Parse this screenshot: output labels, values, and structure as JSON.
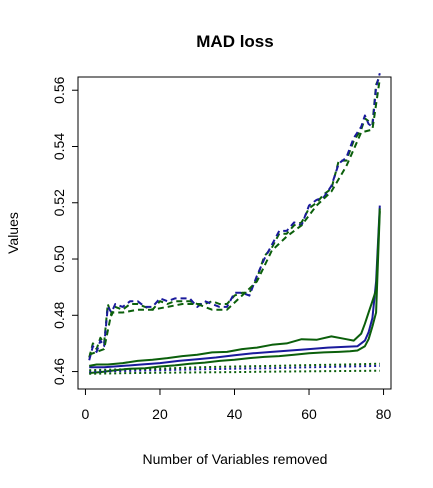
{
  "chart_data": {
    "type": "line",
    "title": "MAD loss",
    "xlabel": "Number of Variables removed",
    "ylabel": "Values",
    "xlim": [
      -2,
      82
    ],
    "ylim": [
      0.4538,
      0.5647
    ],
    "xticks": [
      0,
      20,
      40,
      60,
      80
    ],
    "yticks": [
      0.46,
      0.48,
      0.5,
      0.52,
      0.54,
      0.56
    ],
    "xtick_labels": [
      "0",
      "20",
      "40",
      "60",
      "80"
    ],
    "ytick_labels": [
      "0.46",
      "0.48",
      "0.50",
      "0.52",
      "0.54",
      "0.56"
    ],
    "grid": false,
    "legend": "none",
    "series": [
      {
        "style": "dashed",
        "color": "#0b5f0b",
        "points": [
          [
            1,
            0.465
          ],
          [
            2,
            0.47
          ],
          [
            3,
            0.468
          ],
          [
            4,
            0.472
          ],
          [
            5,
            0.47
          ],
          [
            6,
            0.484
          ],
          [
            7,
            0.48
          ],
          [
            8,
            0.483
          ],
          [
            10,
            0.482
          ],
          [
            12,
            0.484
          ],
          [
            14,
            0.484
          ],
          [
            16,
            0.483
          ],
          [
            18,
            0.482
          ],
          [
            20,
            0.485
          ],
          [
            22,
            0.484
          ],
          [
            24,
            0.485
          ],
          [
            26,
            0.485
          ],
          [
            28,
            0.485
          ],
          [
            30,
            0.484
          ],
          [
            32,
            0.484
          ],
          [
            34,
            0.485
          ],
          [
            36,
            0.484
          ],
          [
            38,
            0.484
          ],
          [
            40,
            0.487
          ],
          [
            42,
            0.488
          ],
          [
            44,
            0.488
          ],
          [
            46,
            0.493
          ],
          [
            48,
            0.501
          ],
          [
            50,
            0.504
          ],
          [
            52,
            0.509
          ],
          [
            54,
            0.509
          ],
          [
            56,
            0.512
          ],
          [
            58,
            0.513
          ],
          [
            60,
            0.518
          ],
          [
            62,
            0.52
          ],
          [
            64,
            0.523
          ],
          [
            66,
            0.525
          ],
          [
            68,
            0.535
          ],
          [
            70,
            0.535
          ],
          [
            72,
            0.542
          ],
          [
            74,
            0.546
          ],
          [
            75,
            0.55
          ],
          [
            76,
            0.549
          ],
          [
            77,
            0.548
          ],
          [
            78,
            0.562
          ],
          [
            79,
            0.565
          ]
        ]
      },
      {
        "style": "dashed",
        "color": "#1a1a9c",
        "points": [
          [
            1,
            0.464
          ],
          [
            2,
            0.469
          ],
          [
            3,
            0.467
          ],
          [
            4,
            0.471
          ],
          [
            5,
            0.469
          ],
          [
            6,
            0.483
          ],
          [
            7,
            0.481
          ],
          [
            8,
            0.484
          ],
          [
            10,
            0.483
          ],
          [
            12,
            0.485
          ],
          [
            14,
            0.485
          ],
          [
            16,
            0.483
          ],
          [
            18,
            0.483
          ],
          [
            20,
            0.486
          ],
          [
            22,
            0.485
          ],
          [
            24,
            0.486
          ],
          [
            26,
            0.486
          ],
          [
            28,
            0.486
          ],
          [
            30,
            0.483
          ],
          [
            32,
            0.485
          ],
          [
            34,
            0.484
          ],
          [
            36,
            0.483
          ],
          [
            38,
            0.483
          ],
          [
            40,
            0.488
          ],
          [
            42,
            0.488
          ],
          [
            44,
            0.487
          ],
          [
            46,
            0.494
          ],
          [
            48,
            0.5
          ],
          [
            50,
            0.505
          ],
          [
            52,
            0.51
          ],
          [
            54,
            0.51
          ],
          [
            56,
            0.513
          ],
          [
            58,
            0.512
          ],
          [
            60,
            0.519
          ],
          [
            62,
            0.521
          ],
          [
            64,
            0.522
          ],
          [
            66,
            0.526
          ],
          [
            68,
            0.534
          ],
          [
            70,
            0.536
          ],
          [
            72,
            0.543
          ],
          [
            74,
            0.547
          ],
          [
            75,
            0.551
          ],
          [
            76,
            0.548
          ],
          [
            77,
            0.547
          ],
          [
            78,
            0.561
          ],
          [
            79,
            0.566
          ]
        ]
      },
      {
        "style": "dashed",
        "color": "#0b5f0b",
        "points": [
          [
            1,
            0.466
          ],
          [
            3,
            0.467
          ],
          [
            5,
            0.468
          ],
          [
            7,
            0.481
          ],
          [
            10,
            0.481
          ],
          [
            14,
            0.482
          ],
          [
            18,
            0.482
          ],
          [
            22,
            0.483
          ],
          [
            26,
            0.484
          ],
          [
            30,
            0.484
          ],
          [
            34,
            0.482
          ],
          [
            38,
            0.482
          ],
          [
            42,
            0.487
          ],
          [
            46,
            0.492
          ],
          [
            50,
            0.503
          ],
          [
            54,
            0.508
          ],
          [
            58,
            0.512
          ],
          [
            62,
            0.519
          ],
          [
            66,
            0.524
          ],
          [
            70,
            0.533
          ],
          [
            74,
            0.545
          ],
          [
            77,
            0.546
          ],
          [
            79,
            0.564
          ]
        ]
      },
      {
        "style": "solid",
        "color": "#1a1a9c",
        "points": [
          [
            1,
            0.4615
          ],
          [
            5,
            0.4615
          ],
          [
            10,
            0.462
          ],
          [
            15,
            0.4625
          ],
          [
            20,
            0.463
          ],
          [
            25,
            0.4638
          ],
          [
            30,
            0.4644
          ],
          [
            35,
            0.465
          ],
          [
            40,
            0.4658
          ],
          [
            45,
            0.4665
          ],
          [
            50,
            0.467
          ],
          [
            55,
            0.4675
          ],
          [
            60,
            0.468
          ],
          [
            65,
            0.4685
          ],
          [
            70,
            0.4688
          ],
          [
            73,
            0.469
          ],
          [
            75,
            0.471
          ],
          [
            76,
            0.474
          ],
          [
            77,
            0.479
          ],
          [
            78,
            0.492
          ],
          [
            79,
            0.519
          ]
        ]
      },
      {
        "style": "solid",
        "color": "#0b5f0b",
        "points": [
          [
            1,
            0.462
          ],
          [
            3,
            0.4625
          ],
          [
            6,
            0.4625
          ],
          [
            10,
            0.463
          ],
          [
            14,
            0.4638
          ],
          [
            18,
            0.4642
          ],
          [
            22,
            0.4648
          ],
          [
            26,
            0.4655
          ],
          [
            30,
            0.466
          ],
          [
            34,
            0.4668
          ],
          [
            38,
            0.467
          ],
          [
            42,
            0.468
          ],
          [
            46,
            0.4685
          ],
          [
            50,
            0.4695
          ],
          [
            54,
            0.47
          ],
          [
            58,
            0.4715
          ],
          [
            62,
            0.4713
          ],
          [
            66,
            0.4725
          ],
          [
            70,
            0.4715
          ],
          [
            72,
            0.471
          ],
          [
            74,
            0.4735
          ],
          [
            75,
            0.477
          ],
          [
            76,
            0.481
          ],
          [
            77,
            0.485
          ],
          [
            78,
            0.489
          ],
          [
            79,
            0.518
          ]
        ]
      },
      {
        "style": "solid",
        "color": "#0b5f0b",
        "points": [
          [
            1,
            0.4595
          ],
          [
            4,
            0.4598
          ],
          [
            8,
            0.4605
          ],
          [
            12,
            0.461
          ],
          [
            16,
            0.4612
          ],
          [
            20,
            0.4618
          ],
          [
            24,
            0.4622
          ],
          [
            28,
            0.4628
          ],
          [
            32,
            0.4632
          ],
          [
            36,
            0.4638
          ],
          [
            40,
            0.4642
          ],
          [
            44,
            0.4648
          ],
          [
            48,
            0.4652
          ],
          [
            52,
            0.4655
          ],
          [
            56,
            0.466
          ],
          [
            60,
            0.4665
          ],
          [
            64,
            0.4668
          ],
          [
            68,
            0.467
          ],
          [
            71,
            0.4672
          ],
          [
            73,
            0.4675
          ],
          [
            75,
            0.469
          ],
          [
            76,
            0.4715
          ],
          [
            77,
            0.476
          ],
          [
            78,
            0.481
          ],
          [
            79,
            0.517
          ]
        ]
      },
      {
        "style": "dotted",
        "color": "#1a1a9c",
        "points": [
          [
            1,
            0.46
          ],
          [
            10,
            0.4602
          ],
          [
            20,
            0.4605
          ],
          [
            30,
            0.4608
          ],
          [
            40,
            0.461
          ],
          [
            50,
            0.4612
          ],
          [
            60,
            0.4615
          ],
          [
            70,
            0.4618
          ],
          [
            79,
            0.462
          ]
        ]
      },
      {
        "style": "dotted",
        "color": "#0b5f0b",
        "points": [
          [
            1,
            0.4605
          ],
          [
            10,
            0.4608
          ],
          [
            20,
            0.461
          ],
          [
            30,
            0.4615
          ],
          [
            40,
            0.4618
          ],
          [
            50,
            0.462
          ],
          [
            60,
            0.4623
          ],
          [
            70,
            0.4625
          ],
          [
            79,
            0.4628
          ]
        ]
      },
      {
        "style": "dotted",
        "color": "#0b5f0b",
        "points": [
          [
            1,
            0.4592
          ],
          [
            10,
            0.4594
          ],
          [
            20,
            0.4596
          ],
          [
            30,
            0.4597
          ],
          [
            40,
            0.4598
          ],
          [
            50,
            0.46
          ],
          [
            60,
            0.4601
          ],
          [
            70,
            0.4602
          ],
          [
            79,
            0.4603
          ]
        ]
      }
    ]
  }
}
